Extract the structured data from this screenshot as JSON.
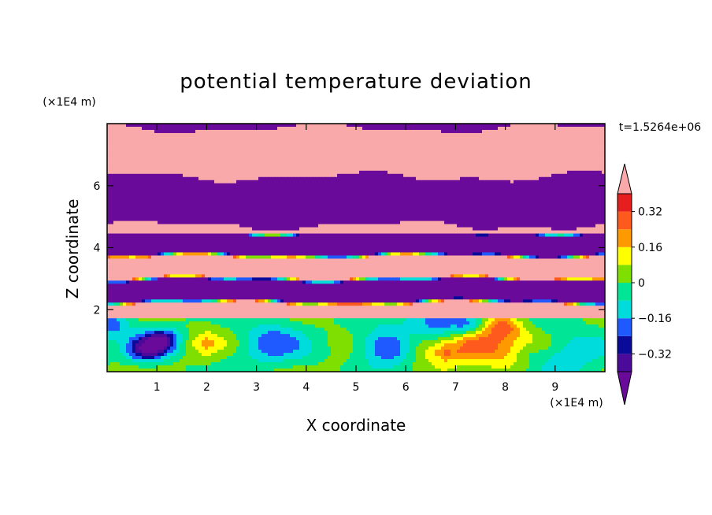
{
  "chart_data": {
    "type": "heatmap",
    "title": "potential temperature deviation",
    "xlabel": "X coordinate",
    "ylabel": "Z coordinate",
    "x_unit": "(×1E4 m)",
    "y_unit": "(×1E4 m)",
    "time_label": "t=1.5264e+06",
    "xlim": [
      0,
      10
    ],
    "ylim": [
      0,
      8
    ],
    "x_ticks": [
      1,
      2,
      3,
      4,
      5,
      6,
      7,
      8,
      9
    ],
    "x_tick_labels": [
      "1",
      "2",
      "3",
      "4",
      "5",
      "6",
      "7",
      "8",
      "9"
    ],
    "y_ticks": [
      2,
      4,
      6
    ],
    "y_tick_labels": [
      "2",
      "4",
      "6"
    ],
    "colorbar": {
      "levels": [
        -0.4,
        -0.32,
        -0.24,
        -0.16,
        -0.08,
        0,
        0.08,
        0.16,
        0.24,
        0.32,
        0.4
      ],
      "tick_values": [
        0.32,
        0.16,
        0,
        -0.16,
        -0.32
      ],
      "tick_labels": [
        "0.32",
        "0.16",
        "0",
        "−0.16",
        "−0.32"
      ],
      "colors": [
        "#4b0a9a",
        "#0a0a9a",
        "#1e5aff",
        "#00dcdc",
        "#00e696",
        "#7fdf00",
        "#ffff00",
        "#ff9900",
        "#ff5a1e",
        "#e61e1e"
      ],
      "over_color": "#f9a9a9",
      "under_color": "#6a0a9a"
    },
    "field_description_bands": [
      {
        "z_range": [
          0,
          1.7
        ],
        "pattern": "convective eddies, values mostly -0.3 to 0.3"
      },
      {
        "z_range": [
          1.7,
          4.5
        ],
        "pattern": "thin alternating layers, over/under with sharp transitions"
      },
      {
        "z_range": [
          4.5,
          8
        ],
        "pattern": "broad alternating layers of over (pink) and under (purple)"
      }
    ]
  }
}
